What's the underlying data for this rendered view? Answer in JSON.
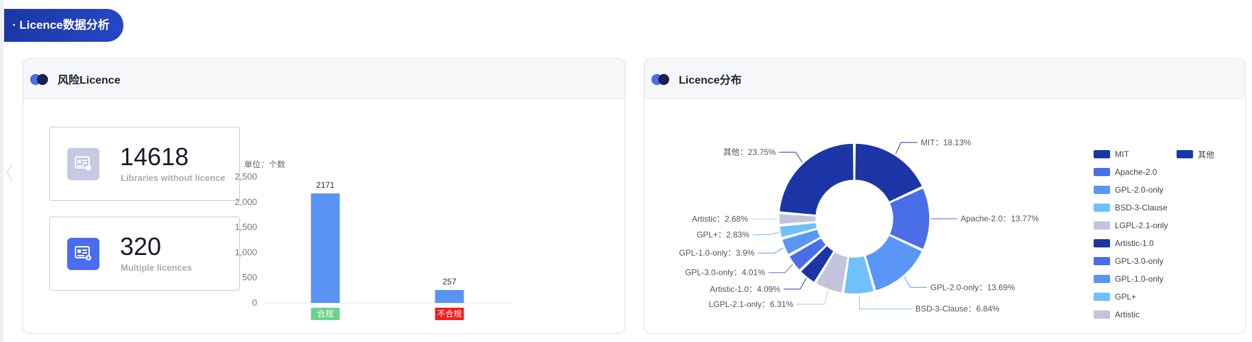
{
  "section": {
    "title": "· Licence数据分析"
  },
  "risk_card": {
    "title": "风险Licence",
    "stats": [
      {
        "value": "14618",
        "label": "Libraries without licence",
        "icon": "license-icon"
      },
      {
        "value": "320",
        "label": "Multiple licences",
        "icon": "license-warning-icon"
      }
    ]
  },
  "dist_card": {
    "title": "Licence分布"
  },
  "colors": {
    "accent_dark": "#1a33a3",
    "bar": "#5994f5",
    "compliant_tag": "#6dd28c",
    "noncompliant_tag": "#f51c1c"
  },
  "chart_data": [
    {
      "type": "bar",
      "unit_label": "单位：个数",
      "categories": [
        "合规",
        "不合规"
      ],
      "values": [
        2171,
        257
      ],
      "data_labels": [
        "2171",
        "257"
      ],
      "yticks": [
        "0",
        "500",
        "1,000",
        "1,500",
        "2,000",
        "2,500"
      ],
      "ylim": [
        0,
        2500
      ],
      "category_tag_colors": [
        "#6dd28c",
        "#f51c1c"
      ],
      "bar_color": "#5994f5"
    },
    {
      "type": "pie",
      "donut": true,
      "slices": [
        {
          "name": "MIT",
          "value": 18.13,
          "label": "MIT：18.13%",
          "color": "#1c35a6"
        },
        {
          "name": "Apache-2.0",
          "value": 13.77,
          "label": "Apache-2.0：13.77%",
          "color": "#4a6ee8"
        },
        {
          "name": "GPL-2.0-only",
          "value": 13.69,
          "label": "GPL-2.0-only：13.69%",
          "color": "#5a96f5"
        },
        {
          "name": "BSD-3-Clause",
          "value": 6.84,
          "label": "BSD-3-Clause：6.84%",
          "color": "#6fc0fb"
        },
        {
          "name": "LGPL-2.1-only",
          "value": 6.31,
          "label": "LGPL-2.1-only：6.31%",
          "color": "#c3c4dc"
        },
        {
          "name": "Artistic-1.0",
          "value": 4.09,
          "label": "Artistic-1.0：4.09%",
          "color": "#1c35a6"
        },
        {
          "name": "GPL-3.0-only",
          "value": 4.01,
          "label": "GPL-3.0-only：4.01%",
          "color": "#4a6ee8"
        },
        {
          "name": "GPL-1.0-only",
          "value": 3.9,
          "label": "GPL-1.0-only：3.9%",
          "color": "#5a96f5"
        },
        {
          "name": "GPL+",
          "value": 2.83,
          "label": "GPL+：2.83%",
          "color": "#6fc0fb"
        },
        {
          "name": "Artistic",
          "value": 2.68,
          "label": "Artistic：2.68%",
          "color": "#c3c4dc"
        },
        {
          "name": "其他",
          "value": 23.75,
          "label": "其他：23.75%",
          "color": "#1c35a6"
        }
      ],
      "legend": {
        "col1": [
          "MIT",
          "Apache-2.0",
          "GPL-2.0-only",
          "BSD-3-Clause",
          "LGPL-2.1-only",
          "Artistic-1.0",
          "GPL-3.0-only",
          "GPL-1.0-only",
          "GPL+",
          "Artistic"
        ],
        "col2": [
          "其他"
        ]
      }
    }
  ]
}
